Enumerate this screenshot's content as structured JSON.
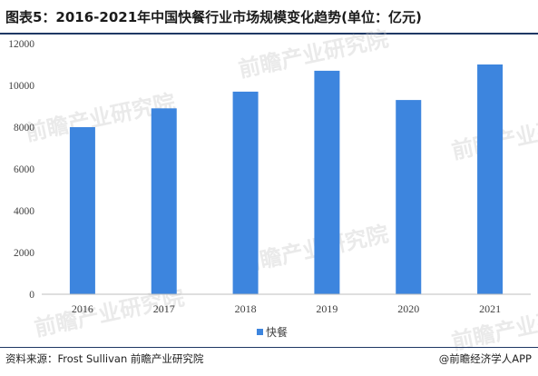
{
  "title": "图表5：2016-2021年中国快餐行业市场规模变化趋势(单位：亿元)",
  "footer": {
    "source": "资料来源：Frost Sullivan 前瞻产业研究院",
    "brand": "@前瞻经济学人APP"
  },
  "watermark": {
    "text": "前瞻产业研究院"
  },
  "colors": {
    "bar": "#3d85de",
    "axis": "#bfbfbf",
    "rule": "#1f3864"
  },
  "chart_data": {
    "type": "bar",
    "categories": [
      "2016",
      "2017",
      "2018",
      "2019",
      "2020",
      "2021"
    ],
    "series": [
      {
        "name": "快餐",
        "values": [
          8000,
          8900,
          9700,
          10700,
          9300,
          11000
        ]
      }
    ],
    "ylim": [
      0,
      12000
    ],
    "yticks": [
      "0",
      "2000",
      "4000",
      "6000",
      "8000",
      "10000",
      "12000"
    ],
    "grid": false,
    "legend_position": "bottom"
  }
}
